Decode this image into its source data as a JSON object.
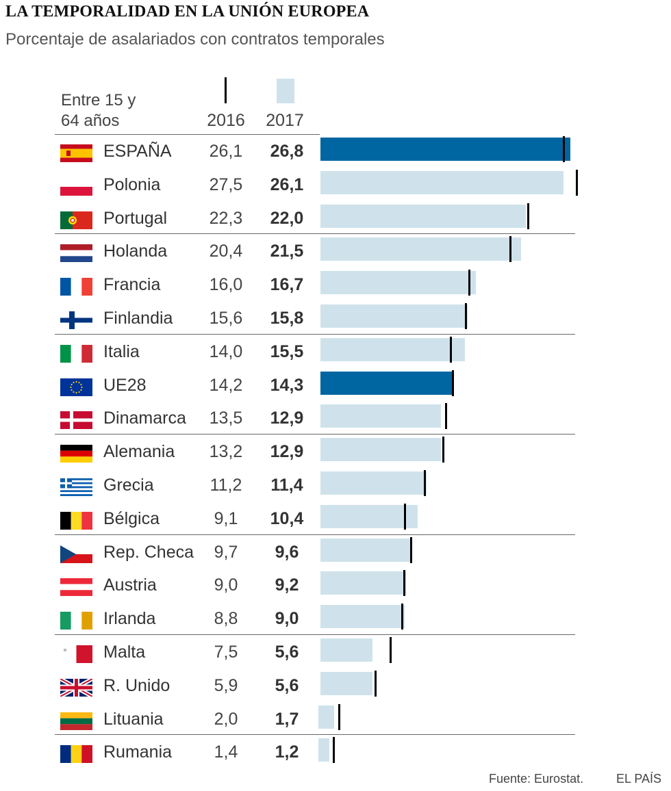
{
  "header": {
    "title": "LA TEMPORALIDAD EN LA UNIÓN EUROPEA",
    "subtitle": "Porcentaje de asalariados con contratos temporales",
    "age_label_line1": "Entre 15 y",
    "age_label_line2": "64 años",
    "year_2016": "2016",
    "year_2017": "2017"
  },
  "footer": {
    "source": "Fuente: Eurostat.",
    "brand": "EL PAÍS"
  },
  "colors": {
    "bar": "#cfe2ec",
    "highlight": "#0066a1",
    "marker": "#000000"
  },
  "chart_data": {
    "type": "bar",
    "orientation": "horizontal",
    "title": "LA TEMPORALIDAD EN LA UNIÓN EUROPEA",
    "subtitle": "Porcentaje de asalariados con contratos temporales",
    "series": [
      {
        "name": "2016",
        "mark": "tick"
      },
      {
        "name": "2017",
        "mark": "bar"
      }
    ],
    "rows": [
      {
        "country": "ESPAÑA",
        "flag": "spain-flag-icon",
        "v2016": "26,1",
        "v2017": "26,8",
        "x2016": 26.1,
        "x2017": 26.8,
        "highlight": true
      },
      {
        "country": "Polonia",
        "flag": "poland-flag-icon",
        "v2016": "27,5",
        "v2017": "26,1",
        "x2016": 27.5,
        "x2017": 26.1,
        "highlight": false
      },
      {
        "country": "Portugal",
        "flag": "portugal-flag-icon",
        "v2016": "22,3",
        "v2017": "22,0",
        "x2016": 22.3,
        "x2017": 22.0,
        "highlight": false
      },
      {
        "country": "Holanda",
        "flag": "netherlands-flag-icon",
        "v2016": "20,4",
        "v2017": "21,5",
        "x2016": 20.4,
        "x2017": 21.5,
        "highlight": false
      },
      {
        "country": "Francia",
        "flag": "france-flag-icon",
        "v2016": "16,0",
        "v2017": "16,7",
        "x2016": 16.0,
        "x2017": 16.7,
        "highlight": false
      },
      {
        "country": "Finlandia",
        "flag": "finland-flag-icon",
        "v2016": "15,6",
        "v2017": "15,8",
        "x2016": 15.6,
        "x2017": 15.8,
        "highlight": false
      },
      {
        "country": "Italia",
        "flag": "italy-flag-icon",
        "v2016": "14,0",
        "v2017": "15,5",
        "x2016": 14.0,
        "x2017": 15.5,
        "highlight": false
      },
      {
        "country": "UE28",
        "flag": "eu-flag-icon",
        "v2016": "14,2",
        "v2017": "14,3",
        "x2016": 14.2,
        "x2017": 14.3,
        "highlight": true
      },
      {
        "country": "Dinamarca",
        "flag": "denmark-flag-icon",
        "v2016": "13,5",
        "v2017": "12,9",
        "x2016": 13.5,
        "x2017": 12.9,
        "highlight": false
      },
      {
        "country": "Alemania",
        "flag": "germany-flag-icon",
        "v2016": "13,2",
        "v2017": "12,9",
        "x2016": 13.2,
        "x2017": 12.9,
        "highlight": false
      },
      {
        "country": "Grecia",
        "flag": "greece-flag-icon",
        "v2016": "11,2",
        "v2017": "11,4",
        "x2016": 11.2,
        "x2017": 11.4,
        "highlight": false
      },
      {
        "country": "Bélgica",
        "flag": "belgium-flag-icon",
        "v2016": "9,1",
        "v2017": "10,4",
        "x2016": 9.1,
        "x2017": 10.4,
        "highlight": false
      },
      {
        "country": "Rep. Checa",
        "flag": "czech-flag-icon",
        "v2016": "9,7",
        "v2017": "9,6",
        "x2016": 9.7,
        "x2017": 9.6,
        "highlight": false
      },
      {
        "country": "Austria",
        "flag": "austria-flag-icon",
        "v2016": "9,0",
        "v2017": "9,2",
        "x2016": 9.0,
        "x2017": 9.2,
        "highlight": false
      },
      {
        "country": "Irlanda",
        "flag": "ireland-flag-icon",
        "v2016": "8,8",
        "v2017": "9,0",
        "x2016": 8.8,
        "x2017": 9.0,
        "highlight": false
      },
      {
        "country": "Malta",
        "flag": "malta-flag-icon",
        "v2016": "7,5",
        "v2017": "5,6",
        "x2016": 7.5,
        "x2017": 5.6,
        "highlight": false
      },
      {
        "country": "R. Unido",
        "flag": "uk-flag-icon",
        "v2016": "5,9",
        "v2017": "5,6",
        "x2016": 5.9,
        "x2017": 5.6,
        "highlight": false
      },
      {
        "country": "Lituania",
        "flag": "lithuania-flag-icon",
        "v2016": "2,0",
        "v2017": "1,7",
        "x2016": 2.0,
        "x2017": 1.7,
        "highlight": false
      },
      {
        "country": "Rumania",
        "flag": "romania-flag-icon",
        "v2016": "1,4",
        "v2017": "1,2",
        "x2016": 1.4,
        "x2017": 1.2,
        "highlight": false
      }
    ],
    "xlim": [
      0,
      28
    ]
  }
}
